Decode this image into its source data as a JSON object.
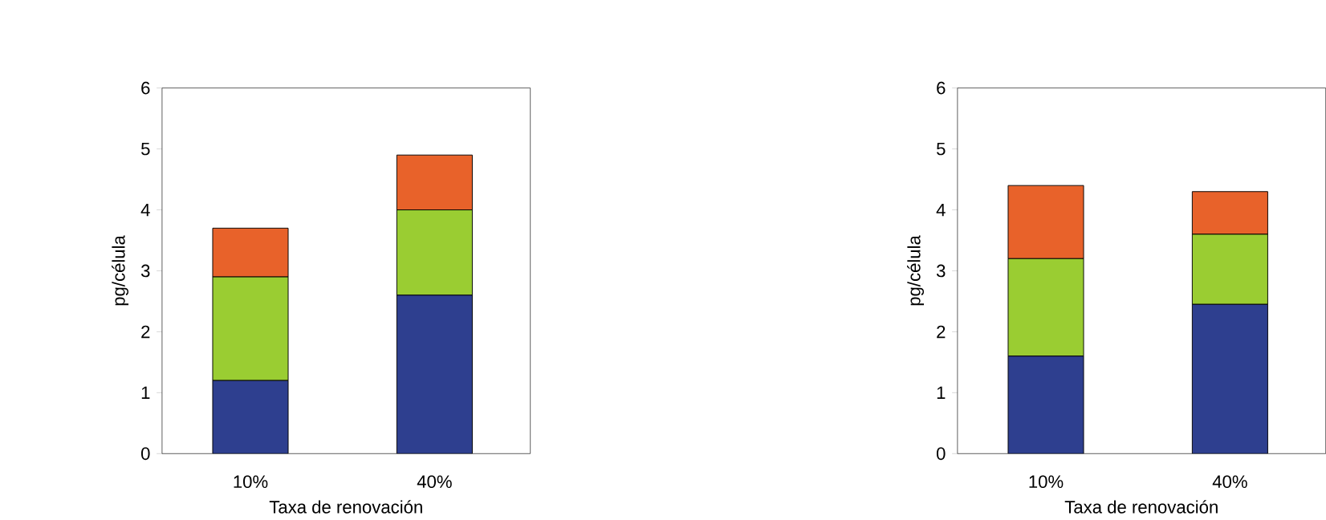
{
  "chart_data": [
    {
      "type": "bar",
      "stacked": true,
      "categories": [
        "10%",
        "40%"
      ],
      "xlabel": "Taxa de renovación",
      "ylabel": "pg/célula",
      "ylim": [
        0,
        6
      ],
      "yticks": [
        0,
        1,
        2,
        3,
        4,
        5,
        6
      ],
      "series": [
        {
          "color": "#2e3f8f",
          "values": [
            1.2,
            2.6
          ]
        },
        {
          "color": "#9acd32",
          "values": [
            1.7,
            1.4
          ]
        },
        {
          "color": "#e8622a",
          "values": [
            0.8,
            0.9
          ]
        }
      ]
    },
    {
      "type": "bar",
      "stacked": true,
      "categories": [
        "10%",
        "40%"
      ],
      "xlabel": "Taxa de renovación",
      "ylabel": "pg/célula",
      "ylim": [
        0,
        6
      ],
      "yticks": [
        0,
        1,
        2,
        3,
        4,
        5,
        6
      ],
      "series": [
        {
          "color": "#2e3f8f",
          "values": [
            1.6,
            2.45
          ]
        },
        {
          "color": "#9acd32",
          "values": [
            1.6,
            1.15
          ]
        },
        {
          "color": "#e8622a",
          "values": [
            1.2,
            0.7
          ]
        }
      ]
    }
  ]
}
